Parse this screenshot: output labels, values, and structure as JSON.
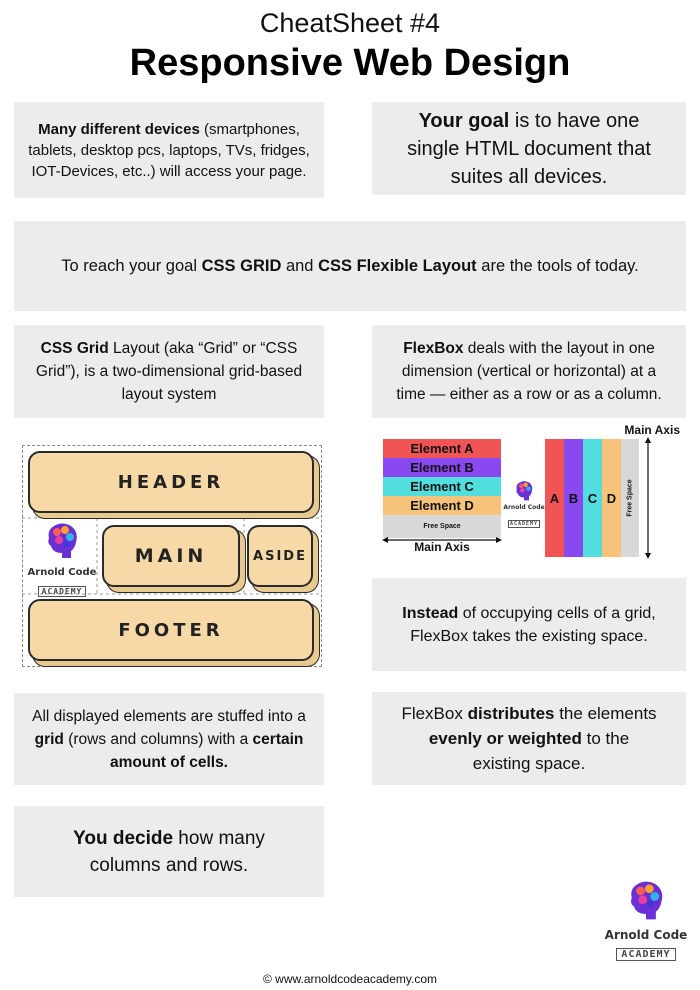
{
  "title": {
    "subtitle": "CheatSheet #4",
    "main": "Responsive Web Design"
  },
  "box_devices": {
    "bold": "Many different devices",
    "rest": " (smartphones, tablets, desktop pcs, laptops, TVs, fridges, IOT-Devices, etc..) will access your page."
  },
  "box_goal": {
    "bold": "Your goal",
    "rest": " is to have one single HTML document that suites all devices."
  },
  "box_tools": {
    "pre": "To reach your goal ",
    "bold1": "CSS GRID",
    "mid": " and ",
    "bold2": "CSS Flexible Layout",
    "post": " are the tools of today."
  },
  "box_grid": {
    "bold": "CSS Grid",
    "rest": " Layout (aka “Grid” or “CSS Grid”), is a two-dimensional grid-based layout system"
  },
  "box_flex": {
    "bold": "FlexBox",
    "rest": " deals with the layout in one dimension (vertical or horizontal) at a time — either as a row or as a column."
  },
  "grid_diagram": {
    "header": "HEADER",
    "main": "MAIN",
    "aside": "ASIDE",
    "footer": "FOOTER"
  },
  "logo": {
    "line1": "Arnold Code",
    "line2": "ACADEMY"
  },
  "flex_diagram": {
    "rows": [
      "Element A",
      "Element B",
      "Element C",
      "Element D"
    ],
    "row_colors": [
      "#f05454",
      "#8a48f0",
      "#52dede",
      "#f7c37a"
    ],
    "free_space": "Free Space",
    "main_axis": "Main Axis",
    "cols": [
      "A",
      "B",
      "C",
      "D"
    ]
  },
  "box_instead": {
    "bold": "Instead",
    "rest": " of occupying cells of a grid, FlexBox takes the existing space."
  },
  "box_cells": {
    "pre": "All displayed elements are stuffed into a ",
    "bold1": "grid",
    "mid": " (rows and columns) with a ",
    "bold2": "certain amount of cells."
  },
  "box_distributes": {
    "pre": "FlexBox ",
    "bold1": "distributes",
    "mid": " the elements ",
    "bold2": "evenly or weighted",
    "post": " to the existing space."
  },
  "box_decide": {
    "bold": "You decide",
    "rest": " how many columns and rows."
  },
  "footer": "© www.arnoldcodeacademy.com"
}
